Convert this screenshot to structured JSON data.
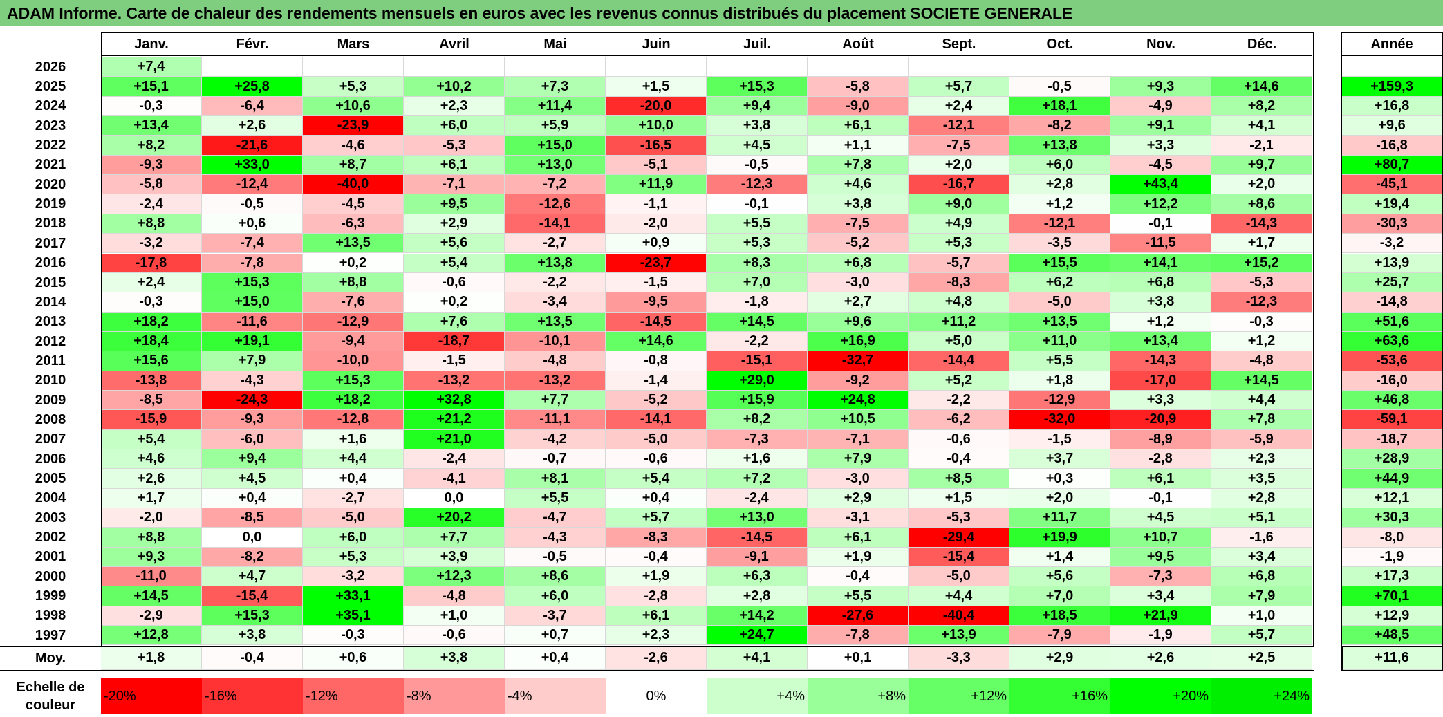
{
  "title": "ADAM Informe. Carte de chaleur des rendements mensuels en euros avec les revenus connus distribués du placement SOCIETE GENERALE",
  "chart_data": {
    "type": "heatmap",
    "title": "ADAM Informe. Carte de chaleur des rendements mensuels en euros avec les revenus connus distribués du placement SOCIETE GENERALE",
    "columns": [
      "Janv.",
      "Févr.",
      "Mars",
      "Avril",
      "Mai",
      "Juin",
      "Juil.",
      "Août",
      "Sept.",
      "Oct.",
      "Nov.",
      "Déc."
    ],
    "year_column": "Année",
    "rows": [
      {
        "year": "2026",
        "values": [
          "+7,4",
          "",
          "",
          "",
          "",
          "",
          "",
          "",
          "",
          "",
          "",
          ""
        ],
        "annual": ""
      },
      {
        "year": "2025",
        "values": [
          "+15,1",
          "+25,8",
          "+5,3",
          "+10,2",
          "+7,3",
          "+1,5",
          "+15,3",
          "-5,8",
          "+5,7",
          "-0,5",
          "+9,3",
          "+14,6"
        ],
        "annual": "+159,3"
      },
      {
        "year": "2024",
        "values": [
          "-0,3",
          "-6,4",
          "+10,6",
          "+2,3",
          "+11,4",
          "-20,0",
          "+9,4",
          "-9,0",
          "+2,4",
          "+18,1",
          "-4,9",
          "+8,2"
        ],
        "annual": "+16,8"
      },
      {
        "year": "2023",
        "values": [
          "+13,4",
          "+2,6",
          "-23,9",
          "+6,0",
          "+5,9",
          "+10,0",
          "+3,8",
          "+6,1",
          "-12,1",
          "-8,2",
          "+9,1",
          "+4,1"
        ],
        "annual": "+9,6"
      },
      {
        "year": "2022",
        "values": [
          "+8,2",
          "-21,6",
          "-4,6",
          "-5,3",
          "+15,0",
          "-16,5",
          "+4,5",
          "+1,1",
          "-7,5",
          "+13,8",
          "+3,3",
          "-2,1"
        ],
        "annual": "-16,8"
      },
      {
        "year": "2021",
        "values": [
          "-9,3",
          "+33,0",
          "+8,7",
          "+6,1",
          "+13,0",
          "-5,1",
          "-0,5",
          "+7,8",
          "+2,0",
          "+6,0",
          "-4,5",
          "+9,7"
        ],
        "annual": "+80,7"
      },
      {
        "year": "2020",
        "values": [
          "-5,8",
          "-12,4",
          "-40,0",
          "-7,1",
          "-7,2",
          "+11,9",
          "-12,3",
          "+4,6",
          "-16,7",
          "+2,8",
          "+43,4",
          "+2,0"
        ],
        "annual": "-45,1"
      },
      {
        "year": "2019",
        "values": [
          "-2,4",
          "-0,5",
          "-4,5",
          "+9,5",
          "-12,6",
          "-1,1",
          "-0,1",
          "+3,8",
          "+9,0",
          "+1,2",
          "+12,2",
          "+8,6"
        ],
        "annual": "+19,4"
      },
      {
        "year": "2018",
        "values": [
          "+8,8",
          "+0,6",
          "-6,3",
          "+2,9",
          "-14,1",
          "-2,0",
          "+5,5",
          "-7,5",
          "+4,9",
          "-12,1",
          "-0,1",
          "-14,3"
        ],
        "annual": "-30,3"
      },
      {
        "year": "2017",
        "values": [
          "-3,2",
          "-7,4",
          "+13,5",
          "+5,6",
          "-2,7",
          "+0,9",
          "+5,3",
          "-5,2",
          "+5,3",
          "-3,5",
          "-11,5",
          "+1,7"
        ],
        "annual": "-3,2"
      },
      {
        "year": "2016",
        "values": [
          "-17,8",
          "-7,8",
          "+0,2",
          "+5,4",
          "+13,8",
          "-23,7",
          "+8,3",
          "+6,8",
          "-5,7",
          "+15,5",
          "+14,1",
          "+15,2"
        ],
        "annual": "+13,9"
      },
      {
        "year": "2015",
        "values": [
          "+2,4",
          "+15,3",
          "+8,8",
          "-0,6",
          "-2,2",
          "-1,5",
          "+7,0",
          "-3,0",
          "-8,3",
          "+6,2",
          "+6,8",
          "-5,3"
        ],
        "annual": "+25,7"
      },
      {
        "year": "2014",
        "values": [
          "-0,3",
          "+15,0",
          "-7,6",
          "+0,2",
          "-3,4",
          "-9,5",
          "-1,8",
          "+2,7",
          "+4,8",
          "-5,0",
          "+3,8",
          "-12,3"
        ],
        "annual": "-14,8"
      },
      {
        "year": "2013",
        "values": [
          "+18,2",
          "-11,6",
          "-12,9",
          "+7,6",
          "+13,5",
          "-14,5",
          "+14,5",
          "+9,6",
          "+11,2",
          "+13,5",
          "+1,2",
          "-0,3"
        ],
        "annual": "+51,6"
      },
      {
        "year": "2012",
        "values": [
          "+18,4",
          "+19,1",
          "-9,4",
          "-18,7",
          "-10,1",
          "+14,6",
          "-2,2",
          "+16,9",
          "+5,0",
          "+11,0",
          "+13,4",
          "+1,2"
        ],
        "annual": "+63,6"
      },
      {
        "year": "2011",
        "values": [
          "+15,6",
          "+7,9",
          "-10,0",
          "-1,5",
          "-4,8",
          "-0,8",
          "-15,1",
          "-32,7",
          "-14,4",
          "+5,5",
          "-14,3",
          "-4,8"
        ],
        "annual": "-53,6"
      },
      {
        "year": "2010",
        "values": [
          "-13,8",
          "-4,3",
          "+15,3",
          "-13,2",
          "-13,2",
          "-1,4",
          "+29,0",
          "-9,2",
          "+5,2",
          "+1,8",
          "-17,0",
          "+14,5"
        ],
        "annual": "-16,0"
      },
      {
        "year": "2009",
        "values": [
          "-8,5",
          "-24,3",
          "+18,2",
          "+32,8",
          "+7,7",
          "-5,2",
          "+15,9",
          "+24,8",
          "-2,2",
          "-12,9",
          "+3,3",
          "+4,4"
        ],
        "annual": "+46,8"
      },
      {
        "year": "2008",
        "values": [
          "-15,9",
          "-9,3",
          "-12,8",
          "+21,2",
          "-11,1",
          "-14,1",
          "+8,2",
          "+10,5",
          "-6,2",
          "-32,0",
          "-20,9",
          "+7,8"
        ],
        "annual": "-59,1"
      },
      {
        "year": "2007",
        "values": [
          "+5,4",
          "-6,0",
          "+1,6",
          "+21,0",
          "-4,2",
          "-5,0",
          "-7,3",
          "-7,1",
          "-0,6",
          "-1,5",
          "-8,9",
          "-5,9"
        ],
        "annual": "-18,7"
      },
      {
        "year": "2006",
        "values": [
          "+4,6",
          "+9,4",
          "+4,4",
          "-2,4",
          "-0,7",
          "-0,6",
          "+1,6",
          "+7,9",
          "-0,4",
          "+3,7",
          "-2,8",
          "+2,3"
        ],
        "annual": "+28,9"
      },
      {
        "year": "2005",
        "values": [
          "+2,6",
          "+4,5",
          "+0,4",
          "-4,1",
          "+8,1",
          "+5,4",
          "+7,2",
          "-3,0",
          "+8,5",
          "+0,3",
          "+6,1",
          "+3,5"
        ],
        "annual": "+44,9"
      },
      {
        "year": "2004",
        "values": [
          "+1,7",
          "+0,4",
          "-2,7",
          "0,0",
          "+5,5",
          "+0,4",
          "-2,4",
          "+2,9",
          "+1,5",
          "+2,0",
          "-0,1",
          "+2,8"
        ],
        "annual": "+12,1"
      },
      {
        "year": "2003",
        "values": [
          "-2,0",
          "-8,5",
          "-5,0",
          "+20,2",
          "-4,7",
          "+5,7",
          "+13,0",
          "-3,1",
          "-5,3",
          "+11,7",
          "+4,5",
          "+5,1"
        ],
        "annual": "+30,3"
      },
      {
        "year": "2002",
        "values": [
          "+8,8",
          "0,0",
          "+6,0",
          "+7,7",
          "-4,3",
          "-8,3",
          "-14,5",
          "+6,1",
          "-29,4",
          "+19,9",
          "+10,7",
          "-1,6"
        ],
        "annual": "-8,0"
      },
      {
        "year": "2001",
        "values": [
          "+9,3",
          "-8,2",
          "+5,3",
          "+3,9",
          "-0,5",
          "-0,4",
          "-9,1",
          "+1,9",
          "-15,4",
          "+1,4",
          "+9,5",
          "+3,4"
        ],
        "annual": "-1,9"
      },
      {
        "year": "2000",
        "values": [
          "-11,0",
          "+4,7",
          "-3,2",
          "+12,3",
          "+8,6",
          "+1,9",
          "+6,3",
          "-0,4",
          "-5,0",
          "+5,6",
          "-7,3",
          "+6,8"
        ],
        "annual": "+17,3"
      },
      {
        "year": "1999",
        "values": [
          "+14,5",
          "-15,4",
          "+33,1",
          "-4,8",
          "+6,0",
          "-2,8",
          "+2,8",
          "+5,5",
          "+4,4",
          "+7,0",
          "+3,4",
          "+7,9"
        ],
        "annual": "+70,1"
      },
      {
        "year": "1998",
        "values": [
          "-2,9",
          "+15,3",
          "+35,1",
          "+1,0",
          "-3,7",
          "+6,1",
          "+14,2",
          "-27,6",
          "-40,4",
          "+18,5",
          "+21,9",
          "+1,0"
        ],
        "annual": "+12,9"
      },
      {
        "year": "1997",
        "values": [
          "+12,8",
          "+3,8",
          "-0,3",
          "-0,6",
          "+0,7",
          "+2,3",
          "+24,7",
          "-7,8",
          "+13,9",
          "-7,9",
          "-1,9",
          "+5,7"
        ],
        "annual": "+48,5"
      }
    ],
    "average": {
      "label": "Moy.",
      "values": [
        "+1,8",
        "-0,4",
        "+0,6",
        "+3,8",
        "+0,4",
        "-2,6",
        "+4,1",
        "+0,1",
        "-3,3",
        "+2,9",
        "+2,6",
        "+2,5"
      ],
      "annual": "+11,6"
    },
    "color_scale": {
      "label": "Echelle de couleur",
      "steps": [
        {
          "text": "-20%",
          "value": -20,
          "color": "#ff0000",
          "align": "left"
        },
        {
          "text": "-16%",
          "value": -16,
          "color": "#ff3333",
          "align": "left"
        },
        {
          "text": "-12%",
          "value": -12,
          "color": "#ff6666",
          "align": "left"
        },
        {
          "text": "-8%",
          "value": -8,
          "color": "#ff9999",
          "align": "left"
        },
        {
          "text": "-4%",
          "value": -4,
          "color": "#ffcccc",
          "align": "left"
        },
        {
          "text": "0%",
          "value": 0,
          "color": "#ffffff",
          "align": "center"
        },
        {
          "text": "+4%",
          "value": 4,
          "color": "#ccffcc",
          "align": "right"
        },
        {
          "text": "+8%",
          "value": 8,
          "color": "#99ff99",
          "align": "right"
        },
        {
          "text": "+12%",
          "value": 12,
          "color": "#66ff66",
          "align": "right"
        },
        {
          "text": "+16%",
          "value": 16,
          "color": "#33ff33",
          "align": "right"
        },
        {
          "text": "+20%",
          "value": 20,
          "color": "#00ff00",
          "align": "right"
        },
        {
          "text": "+24%",
          "value": 24,
          "color": "#00ee00",
          "align": "right"
        }
      ]
    }
  }
}
